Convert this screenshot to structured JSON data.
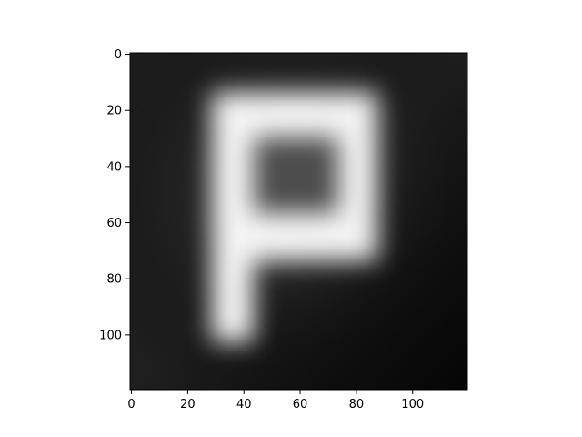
{
  "chart_data": {
    "type": "heatmap",
    "colormap": "gray",
    "image_size": [
      120,
      120
    ],
    "x_ticks": [
      0,
      20,
      40,
      60,
      80,
      100
    ],
    "y_ticks": [
      0,
      20,
      40,
      60,
      80,
      100
    ],
    "x_tick_labels": [
      "0",
      "20",
      "40",
      "60",
      "80",
      "100"
    ],
    "y_tick_labels": [
      "0",
      "20",
      "40",
      "60",
      "80",
      "100"
    ],
    "xlim": [
      -0.5,
      119.5
    ],
    "ylim": [
      119.5,
      -0.5
    ],
    "blur_sigma": 4,
    "image_content": {
      "shape": "letter P, bright strokes on dark background",
      "outer_rect": {
        "x": [
          29,
          88
        ],
        "y": [
          14,
          74
        ]
      },
      "inner_hole": {
        "x": [
          44,
          74
        ],
        "y": [
          30,
          57
        ],
        "value": 0.3
      },
      "stem": {
        "x": [
          29,
          44
        ],
        "y": [
          74,
          103
        ]
      },
      "stroke_value": 0.96,
      "background_value_range": [
        0.04,
        0.2
      ]
    }
  }
}
